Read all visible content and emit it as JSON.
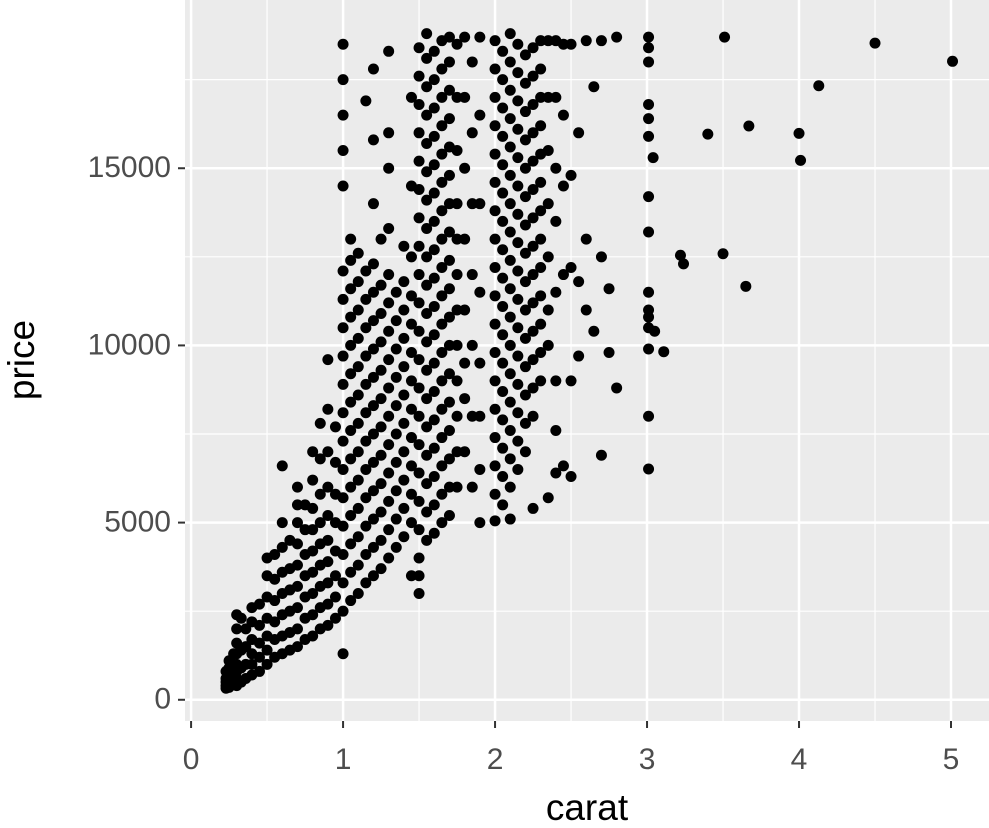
{
  "chart_data": {
    "type": "scatter",
    "x_label": "carat",
    "y_label": "price",
    "color": "#000000",
    "background": "#ebebeb",
    "grid": true,
    "xlim": [
      -0.04,
      5.25
    ],
    "ylim": [
      -599,
      19748
    ],
    "xticks": [
      0,
      1,
      2,
      3,
      4,
      5
    ],
    "yticks": [
      0,
      5000,
      10000,
      15000
    ],
    "xminor": [
      0.5,
      1.5,
      2.5,
      3.5,
      4.5
    ],
    "yminor": [
      2500,
      7500,
      12500,
      17500
    ],
    "x": [
      0.23,
      0.23,
      0.23,
      0.23,
      0.23,
      0.25,
      0.25,
      0.25,
      0.25,
      0.28,
      0.28,
      0.28,
      0.28,
      0.3,
      0.3,
      0.3,
      0.3,
      0.3,
      0.3,
      0.3,
      0.3,
      0.33,
      0.33,
      0.33,
      0.33,
      0.36,
      0.36,
      0.36,
      0.36,
      0.4,
      0.4,
      0.4,
      0.4,
      0.4,
      0.4,
      0.45,
      0.45,
      0.45,
      0.45,
      0.45,
      0.5,
      0.5,
      0.5,
      0.5,
      0.5,
      0.5,
      0.5,
      0.55,
      0.55,
      0.55,
      0.55,
      0.55,
      0.55,
      0.6,
      0.6,
      0.6,
      0.6,
      0.6,
      0.6,
      0.6,
      0.6,
      0.65,
      0.65,
      0.65,
      0.65,
      0.65,
      0.65,
      0.7,
      0.7,
      0.7,
      0.7,
      0.7,
      0.7,
      0.7,
      0.7,
      0.7,
      0.75,
      0.75,
      0.75,
      0.75,
      0.75,
      0.75,
      0.75,
      0.8,
      0.8,
      0.8,
      0.8,
      0.8,
      0.8,
      0.8,
      0.8,
      0.8,
      0.85,
      0.85,
      0.85,
      0.85,
      0.85,
      0.85,
      0.85,
      0.85,
      0.85,
      0.9,
      0.9,
      0.9,
      0.9,
      0.9,
      0.9,
      0.9,
      0.9,
      0.9,
      0.9,
      0.95,
      0.95,
      0.95,
      0.95,
      0.95,
      0.95,
      0.95,
      0.95,
      1.0,
      1.0,
      1.0,
      1.0,
      1.0,
      1.0,
      1.0,
      1.0,
      1.0,
      1.0,
      1.0,
      1.0,
      1.0,
      1.0,
      1.0,
      1.0,
      1.0,
      1.0,
      1.0,
      1.05,
      1.05,
      1.05,
      1.05,
      1.05,
      1.05,
      1.05,
      1.05,
      1.05,
      1.05,
      1.05,
      1.05,
      1.05,
      1.05,
      1.1,
      1.1,
      1.1,
      1.1,
      1.1,
      1.1,
      1.1,
      1.1,
      1.1,
      1.1,
      1.1,
      1.1,
      1.1,
      1.15,
      1.15,
      1.15,
      1.15,
      1.15,
      1.15,
      1.15,
      1.15,
      1.15,
      1.15,
      1.15,
      1.15,
      1.15,
      1.2,
      1.2,
      1.2,
      1.2,
      1.2,
      1.2,
      1.2,
      1.2,
      1.2,
      1.2,
      1.2,
      1.2,
      1.2,
      1.2,
      1.2,
      1.25,
      1.25,
      1.25,
      1.25,
      1.25,
      1.25,
      1.25,
      1.25,
      1.25,
      1.25,
      1.25,
      1.25,
      1.3,
      1.3,
      1.3,
      1.3,
      1.3,
      1.3,
      1.3,
      1.3,
      1.3,
      1.3,
      1.3,
      1.3,
      1.3,
      1.3,
      1.3,
      1.35,
      1.35,
      1.35,
      1.35,
      1.35,
      1.35,
      1.35,
      1.35,
      1.35,
      1.35,
      1.4,
      1.4,
      1.4,
      1.4,
      1.4,
      1.4,
      1.4,
      1.4,
      1.4,
      1.4,
      1.4,
      1.45,
      1.45,
      1.45,
      1.45,
      1.45,
      1.45,
      1.45,
      1.45,
      1.45,
      1.45,
      1.45,
      1.45,
      1.45,
      1.5,
      1.5,
      1.5,
      1.5,
      1.5,
      1.5,
      1.5,
      1.5,
      1.5,
      1.5,
      1.5,
      1.5,
      1.5,
      1.5,
      1.5,
      1.5,
      1.5,
      1.5,
      1.5,
      1.5,
      1.5,
      1.55,
      1.55,
      1.55,
      1.55,
      1.55,
      1.55,
      1.55,
      1.55,
      1.55,
      1.55,
      1.55,
      1.55,
      1.55,
      1.55,
      1.55,
      1.55,
      1.55,
      1.55,
      1.55,
      1.6,
      1.6,
      1.6,
      1.6,
      1.6,
      1.6,
      1.6,
      1.6,
      1.6,
      1.6,
      1.6,
      1.6,
      1.6,
      1.6,
      1.6,
      1.6,
      1.6,
      1.6,
      1.65,
      1.65,
      1.65,
      1.65,
      1.65,
      1.65,
      1.65,
      1.65,
      1.65,
      1.65,
      1.65,
      1.65,
      1.65,
      1.65,
      1.65,
      1.65,
      1.65,
      1.65,
      1.7,
      1.7,
      1.7,
      1.7,
      1.7,
      1.7,
      1.7,
      1.7,
      1.7,
      1.7,
      1.7,
      1.7,
      1.7,
      1.7,
      1.7,
      1.7,
      1.7,
      1.7,
      1.75,
      1.75,
      1.75,
      1.75,
      1.75,
      1.75,
      1.75,
      1.75,
      1.75,
      1.75,
      1.75,
      1.75,
      1.8,
      1.8,
      1.8,
      1.8,
      1.8,
      1.8,
      1.8,
      1.8,
      1.85,
      1.85,
      1.85,
      1.85,
      1.85,
      1.85,
      1.85,
      1.9,
      1.9,
      1.9,
      1.9,
      1.9,
      1.9,
      1.9,
      1.9,
      2.0,
      2.0,
      2.0,
      2.0,
      2.0,
      2.0,
      2.0,
      2.0,
      2.0,
      2.0,
      2.0,
      2.0,
      2.0,
      2.0,
      2.0,
      2.0,
      2.0,
      2.0,
      2.05,
      2.05,
      2.05,
      2.05,
      2.05,
      2.05,
      2.05,
      2.05,
      2.05,
      2.05,
      2.05,
      2.05,
      2.05,
      2.05,
      2.05,
      2.05,
      2.05,
      2.1,
      2.1,
      2.1,
      2.1,
      2.1,
      2.1,
      2.1,
      2.1,
      2.1,
      2.1,
      2.1,
      2.1,
      2.1,
      2.1,
      2.1,
      2.1,
      2.1,
      2.1,
      2.15,
      2.15,
      2.15,
      2.15,
      2.15,
      2.15,
      2.15,
      2.15,
      2.15,
      2.15,
      2.15,
      2.15,
      2.15,
      2.15,
      2.15,
      2.15,
      2.2,
      2.2,
      2.2,
      2.2,
      2.2,
      2.2,
      2.2,
      2.2,
      2.2,
      2.2,
      2.2,
      2.2,
      2.2,
      2.2,
      2.2,
      2.25,
      2.25,
      2.25,
      2.25,
      2.25,
      2.25,
      2.25,
      2.25,
      2.25,
      2.25,
      2.25,
      2.25,
      2.25,
      2.25,
      2.25,
      2.3,
      2.3,
      2.3,
      2.3,
      2.3,
      2.3,
      2.3,
      2.3,
      2.3,
      2.3,
      2.3,
      2.3,
      2.3,
      2.35,
      2.35,
      2.35,
      2.35,
      2.35,
      2.35,
      2.35,
      2.35,
      2.4,
      2.4,
      2.4,
      2.4,
      2.4,
      2.4,
      2.4,
      2.4,
      2.45,
      2.45,
      2.45,
      2.45,
      2.45,
      2.5,
      2.5,
      2.5,
      2.5,
      2.5,
      2.55,
      2.55,
      2.55,
      2.6,
      2.6,
      2.6,
      2.65,
      2.65,
      2.7,
      2.7,
      2.7,
      2.75,
      2.75,
      2.8,
      2.8,
      3.01,
      3.01,
      3.01,
      3.01,
      3.01,
      3.01,
      3.01,
      3.01,
      3.01,
      3.01,
      3.01,
      3.01,
      3.01,
      3.01,
      3.01,
      3.04,
      3.05,
      3.11,
      3.22,
      3.24,
      3.4,
      3.5,
      3.51,
      3.65,
      3.67,
      4.0,
      4.01,
      4.13,
      4.5,
      5.01
    ],
    "values": [
      326,
      400,
      500,
      600,
      800,
      350,
      700,
      900,
      1100,
      450,
      650,
      1000,
      1300,
      400,
      600,
      800,
      1000,
      1300,
      1600,
      2000,
      2400,
      500,
      900,
      1400,
      2300,
      600,
      1000,
      1500,
      2000,
      700,
      1000,
      1300,
      1700,
      2200,
      2600,
      800,
      1200,
      1600,
      2100,
      2700,
      1000,
      1400,
      1800,
      2300,
      2900,
      3500,
      4000,
      1200,
      1700,
      2200,
      2800,
      3400,
      4100,
      1300,
      1800,
      2400,
      3000,
      3600,
      4300,
      5000,
      6600,
      1400,
      1900,
      2500,
      3100,
      3700,
      4500,
      1500,
      2000,
      2600,
      3200,
      3800,
      4400,
      5000,
      5500,
      6000,
      1700,
      2300,
      2900,
      3500,
      4100,
      4800,
      5500,
      1800,
      2400,
      3000,
      3600,
      4200,
      4800,
      5400,
      6200,
      7000,
      2000,
      2600,
      3200,
      3800,
      4400,
      5000,
      5800,
      6800,
      7800,
      2100,
      2700,
      3300,
      3900,
      4500,
      5200,
      6000,
      7000,
      8200,
      9600,
      2300,
      2900,
      3500,
      4200,
      5000,
      5800,
      6700,
      7700,
      1300,
      2500,
      3300,
      4100,
      4900,
      5700,
      6500,
      7300,
      8100,
      8900,
      9700,
      10500,
      11300,
      12100,
      14500,
      15500,
      16500,
      17500,
      18500,
      2800,
      3600,
      4400,
      5200,
      6000,
      6800,
      7600,
      8400,
      9200,
      10000,
      10800,
      11600,
      12400,
      13000,
      3000,
      3800,
      4600,
      5400,
      6200,
      7000,
      7800,
      8600,
      9400,
      10200,
      11000,
      11800,
      12600,
      3300,
      4100,
      4900,
      5700,
      6500,
      7300,
      8100,
      8900,
      9700,
      10500,
      11300,
      12100,
      16900,
      3500,
      4300,
      5100,
      5900,
      6700,
      7500,
      8300,
      9100,
      9900,
      10700,
      11500,
      12300,
      14000,
      15800,
      17800,
      3700,
      4500,
      5300,
      6100,
      6900,
      7700,
      8500,
      9300,
      10100,
      10900,
      11700,
      13000,
      4000,
      4800,
      5600,
      6400,
      7200,
      8000,
      8800,
      9600,
      10400,
      11200,
      12000,
      13300,
      15000,
      16000,
      18300,
      4300,
      5100,
      5900,
      6700,
      7500,
      8300,
      9100,
      9900,
      10700,
      11500,
      4600,
      5400,
      6200,
      7000,
      7800,
      8600,
      9400,
      10200,
      11000,
      11800,
      12800,
      3500,
      5000,
      5800,
      6600,
      7400,
      8200,
      9000,
      9800,
      10600,
      11400,
      12500,
      14500,
      17000,
      3000,
      3500,
      4000,
      4800,
      5600,
      6400,
      7200,
      8000,
      8800,
      9600,
      10400,
      11200,
      12000,
      12800,
      13600,
      14400,
      15200,
      16000,
      16800,
      17600,
      18400,
      4500,
      5300,
      6100,
      6900,
      7700,
      8500,
      9300,
      10100,
      10900,
      11700,
      12500,
      13300,
      14100,
      14900,
      15700,
      16500,
      17300,
      18100,
      18800,
      4700,
      5500,
      6300,
      7100,
      7900,
      8700,
      9500,
      10300,
      11100,
      11900,
      12700,
      13500,
      14300,
      15100,
      15900,
      16700,
      17500,
      18300,
      5000,
      5800,
      6600,
      7400,
      8200,
      9000,
      9800,
      10600,
      11400,
      12200,
      13000,
      13800,
      14600,
      15400,
      16200,
      17000,
      17800,
      18600,
      5200,
      6000,
      6800,
      7600,
      8400,
      9200,
      10000,
      10800,
      11600,
      12400,
      13200,
      14000,
      14800,
      15600,
      16400,
      17200,
      18000,
      18700,
      6000,
      7000,
      8000,
      9000,
      10000,
      11000,
      12000,
      13000,
      14000,
      15500,
      17000,
      18500,
      7000,
      8500,
      9500,
      11000,
      13000,
      15000,
      17000,
      18700,
      6000,
      8000,
      10000,
      12000,
      14000,
      16000,
      18000,
      5000,
      6500,
      8000,
      9500,
      11500,
      14000,
      16500,
      18700,
      5050,
      5800,
      6600,
      7400,
      8200,
      9000,
      9800,
      10600,
      11400,
      12200,
      13000,
      13800,
      14600,
      15400,
      16200,
      17000,
      17800,
      18600,
      5500,
      6300,
      7100,
      7900,
      8700,
      9500,
      10300,
      11100,
      11900,
      12700,
      13500,
      14300,
      15100,
      15900,
      16700,
      17500,
      18300,
      5100,
      6000,
      6800,
      7600,
      8400,
      9200,
      10000,
      10800,
      11600,
      12400,
      13200,
      14000,
      14800,
      15600,
      16400,
      17200,
      18000,
      18800,
      6500,
      7300,
      8100,
      8900,
      9700,
      10500,
      11300,
      12100,
      12900,
      13700,
      14500,
      15300,
      16100,
      16900,
      17700,
      18500,
      7000,
      7800,
      8600,
      9400,
      10200,
      11000,
      11800,
      12600,
      13400,
      14200,
      15000,
      15800,
      16600,
      17400,
      18200,
      5400,
      8000,
      8800,
      9600,
      10400,
      11200,
      12000,
      12800,
      13600,
      14400,
      15200,
      16000,
      16800,
      17600,
      18400,
      9000,
      9800,
      10600,
      11400,
      12200,
      13000,
      13800,
      14600,
      15400,
      16200,
      17000,
      17800,
      18600,
      5700,
      10000,
      11000,
      12500,
      14000,
      15500,
      17000,
      18600,
      6400,
      7600,
      9000,
      11500,
      13500,
      15000,
      17000,
      18600,
      6600,
      12000,
      14500,
      16500,
      18500,
      6300,
      9000,
      12200,
      14800,
      18500,
      9700,
      11800,
      16000,
      11000,
      13000,
      18600,
      10400,
      17300,
      6900,
      12500,
      18600,
      9800,
      11600,
      8800,
      18700,
      6512,
      8000,
      9900,
      10500,
      10800,
      11000,
      11500,
      13200,
      14200,
      15900,
      16400,
      16800,
      18000,
      18400,
      18700,
      15300,
      10400,
      9823,
      12545,
      12300,
      15964,
      12587,
      18701,
      11668,
      16193,
      15984,
      15223,
      17329,
      18531,
      18018
    ]
  }
}
